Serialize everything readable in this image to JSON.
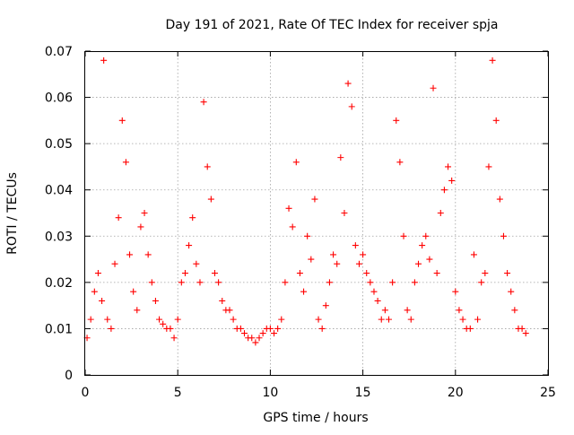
{
  "chart_data": {
    "type": "scatter",
    "title": "Day 191 of 2021, Rate Of TEC Index for receiver spja",
    "xlabel": "GPS time / hours",
    "ylabel": "ROTI / TECUs",
    "xlim": [
      0,
      25
    ],
    "ylim": [
      0,
      0.07
    ],
    "x_ticks": [
      "0",
      "5",
      "10",
      "15",
      "20",
      "25"
    ],
    "y_ticks": [
      "0",
      "0.01",
      "0.02",
      "0.03",
      "0.04",
      "0.05",
      "0.06",
      "0.07"
    ],
    "x_tick_values": [
      0,
      5,
      10,
      15,
      20,
      25
    ],
    "y_tick_values": [
      0,
      0.01,
      0.02,
      0.03,
      0.04,
      0.05,
      0.06,
      0.07
    ],
    "grid": true,
    "marker": "+",
    "color": "#ff0000",
    "series": [
      {
        "name": "ROTI",
        "x": [
          0.1,
          0.3,
          0.5,
          0.7,
          0.9,
          1.0,
          1.2,
          1.4,
          1.6,
          1.8,
          2.0,
          2.2,
          2.4,
          2.6,
          2.8,
          3.0,
          3.2,
          3.4,
          3.6,
          3.8,
          4.0,
          4.2,
          4.4,
          4.6,
          4.8,
          5.0,
          5.2,
          5.4,
          5.6,
          5.8,
          6.0,
          6.2,
          6.4,
          6.6,
          6.8,
          7.0,
          7.2,
          7.4,
          7.6,
          7.8,
          8.0,
          8.2,
          8.4,
          8.6,
          8.8,
          9.0,
          9.2,
          9.4,
          9.6,
          9.8,
          10.0,
          10.2,
          10.4,
          10.6,
          10.8,
          11.0,
          11.2,
          11.4,
          11.6,
          11.8,
          12.0,
          12.2,
          12.4,
          12.6,
          12.8,
          13.0,
          13.2,
          13.4,
          13.6,
          13.8,
          14.0,
          14.2,
          14.4,
          14.6,
          14.8,
          15.0,
          15.2,
          15.4,
          15.6,
          15.8,
          16.0,
          16.2,
          16.4,
          16.6,
          16.8,
          17.0,
          17.2,
          17.4,
          17.6,
          17.8,
          18.0,
          18.2,
          18.4,
          18.6,
          18.8,
          19.0,
          19.2,
          19.4,
          19.6,
          19.8,
          20.0,
          20.2,
          20.4,
          20.6,
          20.8,
          21.0,
          21.2,
          21.4,
          21.6,
          21.8,
          22.0,
          22.2,
          22.4,
          22.6,
          22.8,
          23.0,
          23.2,
          23.4,
          23.6,
          23.8
        ],
        "y": [
          0.008,
          0.012,
          0.018,
          0.022,
          0.016,
          0.068,
          0.012,
          0.01,
          0.024,
          0.034,
          0.055,
          0.046,
          0.026,
          0.018,
          0.014,
          0.032,
          0.035,
          0.026,
          0.02,
          0.016,
          0.012,
          0.011,
          0.01,
          0.01,
          0.008,
          0.012,
          0.02,
          0.022,
          0.028,
          0.034,
          0.024,
          0.02,
          0.059,
          0.045,
          0.038,
          0.022,
          0.02,
          0.016,
          0.014,
          0.014,
          0.012,
          0.01,
          0.01,
          0.009,
          0.008,
          0.008,
          0.007,
          0.008,
          0.009,
          0.01,
          0.01,
          0.009,
          0.01,
          0.012,
          0.02,
          0.036,
          0.032,
          0.046,
          0.022,
          0.018,
          0.03,
          0.025,
          0.038,
          0.012,
          0.01,
          0.015,
          0.02,
          0.026,
          0.024,
          0.047,
          0.035,
          0.063,
          0.058,
          0.028,
          0.024,
          0.026,
          0.022,
          0.02,
          0.018,
          0.016,
          0.012,
          0.014,
          0.012,
          0.02,
          0.055,
          0.046,
          0.03,
          0.014,
          0.012,
          0.02,
          0.024,
          0.028,
          0.03,
          0.025,
          0.062,
          0.022,
          0.035,
          0.04,
          0.045,
          0.042,
          0.018,
          0.014,
          0.012,
          0.01,
          0.01,
          0.026,
          0.012,
          0.02,
          0.022,
          0.045,
          0.068,
          0.055,
          0.038,
          0.03,
          0.022,
          0.018,
          0.014,
          0.01,
          0.01,
          0.009
        ]
      }
    ]
  }
}
